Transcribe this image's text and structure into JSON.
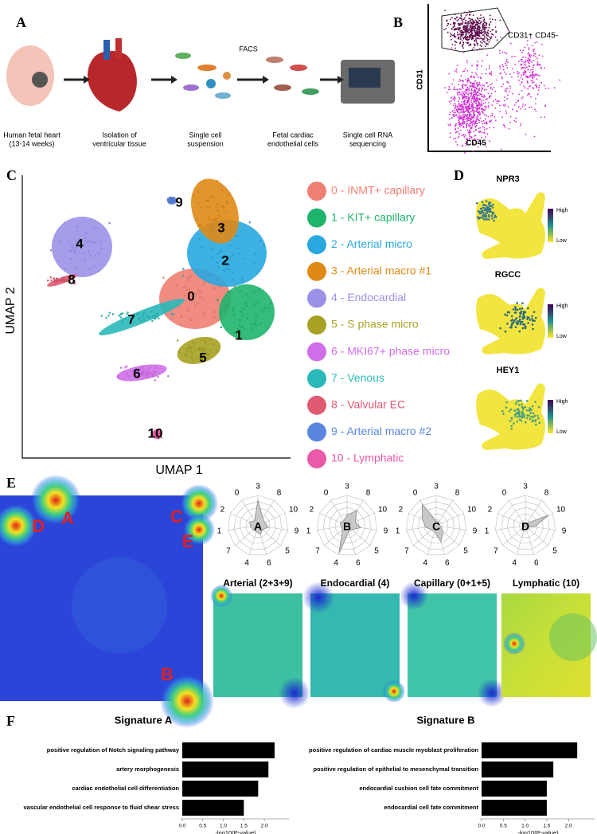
{
  "panel_labels": [
    "A",
    "B",
    "C",
    "D",
    "E",
    "F"
  ],
  "workflow": {
    "steps": [
      {
        "lines": [
          "Human fetal heart",
          "(13-14 weeks)"
        ]
      },
      {
        "lines": [
          "Isolation of",
          "ventricular tissue"
        ]
      },
      {
        "lines": [
          "Single cell",
          "suspension"
        ]
      },
      {
        "lines": [
          "Fetal cardiac",
          "endothelial cells"
        ]
      },
      {
        "lines": [
          "Single cell RNA",
          "sequencing"
        ]
      }
    ],
    "arrow_label": "FACS"
  },
  "facs": {
    "gate_label": "CD31+ CD45-",
    "y_label": "CD31",
    "x_label": "CD45"
  },
  "umap": {
    "x_label": "UMAP 1",
    "y_label": "UMAP 2",
    "clusters": [
      {
        "id": "0",
        "label": "0 - INMT+ capillary",
        "color": "#f07f73"
      },
      {
        "id": "1",
        "label": "1 - KIT+ capillary",
        "color": "#1fb46b"
      },
      {
        "id": "2",
        "label": "2 - Arterial micro",
        "color": "#29a8e0"
      },
      {
        "id": "3",
        "label": "3 - Arterial macro #1",
        "color": "#e08a16"
      },
      {
        "id": "4",
        "label": "4 - Endocardial",
        "color": "#9b92e8"
      },
      {
        "id": "5",
        "label": "5 - S phase micro",
        "color": "#a7a224"
      },
      {
        "id": "6",
        "label": "6 - MKI67+ phase micro",
        "color": "#cf6ee8"
      },
      {
        "id": "7",
        "label": "7 - Venous",
        "color": "#2ab8b8"
      },
      {
        "id": "8",
        "label": "8 - Valvular EC",
        "color": "#e05a72"
      },
      {
        "id": "9",
        "label": "9 - Arterial macro #2",
        "color": "#5b86e0"
      },
      {
        "id": "10",
        "label": "10 - Lymphatic",
        "color": "#ea5aa9"
      }
    ]
  },
  "features": {
    "genes": [
      "NPR3",
      "RGCC",
      "HEY1"
    ],
    "high": "High",
    "low": "Low"
  },
  "heatmap": {
    "letters": [
      "A",
      "B",
      "C",
      "D",
      "E"
    ],
    "titles": [
      "Arterial (2+3+9)",
      "Endocardial (4)",
      "Capillary (0+1+5)",
      "Lymphatic (10)"
    ]
  },
  "chart_data": [
    {
      "type": "radar",
      "title": "A",
      "categories": [
        "3",
        "8",
        "10",
        "9",
        "5",
        "6",
        "4",
        "7",
        "1",
        "2",
        "0"
      ],
      "values": [
        0.85,
        0.3,
        0.25,
        0.35,
        0.2,
        0.3,
        0.2,
        0.2,
        0.25,
        0.3,
        0.2
      ],
      "rlim": [
        0,
        1
      ],
      "color": "#c8c8c8"
    },
    {
      "type": "radar",
      "title": "B",
      "categories": [
        "3",
        "8",
        "10",
        "9",
        "5",
        "6",
        "4",
        "7",
        "1",
        "2",
        "0"
      ],
      "values": [
        0.35,
        0.6,
        0.3,
        0.45,
        0.2,
        0.2,
        0.95,
        0.2,
        0.2,
        0.25,
        0.2
      ],
      "rlim": [
        0,
        1
      ],
      "color": "#c8c8c8"
    },
    {
      "type": "radar",
      "title": "C",
      "categories": [
        "3",
        "8",
        "10",
        "9",
        "5",
        "6",
        "4",
        "7",
        "1",
        "2",
        "0"
      ],
      "values": [
        0.15,
        0.15,
        0.1,
        0.15,
        0.3,
        0.55,
        0.2,
        0.2,
        0.35,
        0.5,
        0.85
      ],
      "rlim": [
        0,
        1
      ],
      "color": "#c8c8c8"
    },
    {
      "type": "radar",
      "title": "D",
      "categories": [
        "3",
        "8",
        "10",
        "9",
        "5",
        "6",
        "4",
        "7",
        "1",
        "2",
        "0"
      ],
      "values": [
        0.05,
        0.1,
        0.85,
        0.3,
        0.05,
        0.05,
        0.05,
        0.05,
        0.05,
        0.05,
        0.05
      ],
      "rlim": [
        0,
        1
      ],
      "color": "#c8c8c8"
    },
    {
      "type": "bar",
      "orientation": "horizontal",
      "title": "Signature A",
      "categories": [
        "positive regulation of Notch signaling pathway",
        "artery morphogenesis",
        "cardiac endothelial cell differentiation",
        "vascular endothelial cell response to fluid shear stress"
      ],
      "values": [
        2.25,
        2.1,
        1.85,
        1.5
      ],
      "color": "#000000",
      "xlim": [
        0,
        2.6
      ],
      "xticks": [
        {
          "value": 0,
          "label": "0.0"
        },
        {
          "value": 0.5,
          "label": "0.5"
        },
        {
          "value": 1,
          "label": "1.0"
        },
        {
          "value": 1.5,
          "label": "1.5"
        },
        {
          "value": 2,
          "label": "2.0"
        }
      ],
      "x_label": "-log10(P-value)"
    },
    {
      "type": "bar",
      "orientation": "horizontal",
      "title": "Signature B",
      "categories": [
        "positive regulation of cardiac muscle myoblast proliferation",
        "positive regulation of epithelial to mesenchymal transition",
        "endocardial cushion cell fate commitment",
        "endocardial cell fate commitment"
      ],
      "values": [
        2.2,
        1.65,
        1.5,
        1.5
      ],
      "color": "#000000",
      "xlim": [
        0,
        2.6
      ],
      "xticks": [
        {
          "value": 0,
          "label": "0.0"
        },
        {
          "value": 0.5,
          "label": "0.5"
        },
        {
          "value": 1,
          "label": "1.0"
        },
        {
          "value": 1.5,
          "label": "1.5"
        },
        {
          "value": 2,
          "label": "2.0"
        }
      ],
      "x_label": "-log10(P-value)"
    }
  ]
}
